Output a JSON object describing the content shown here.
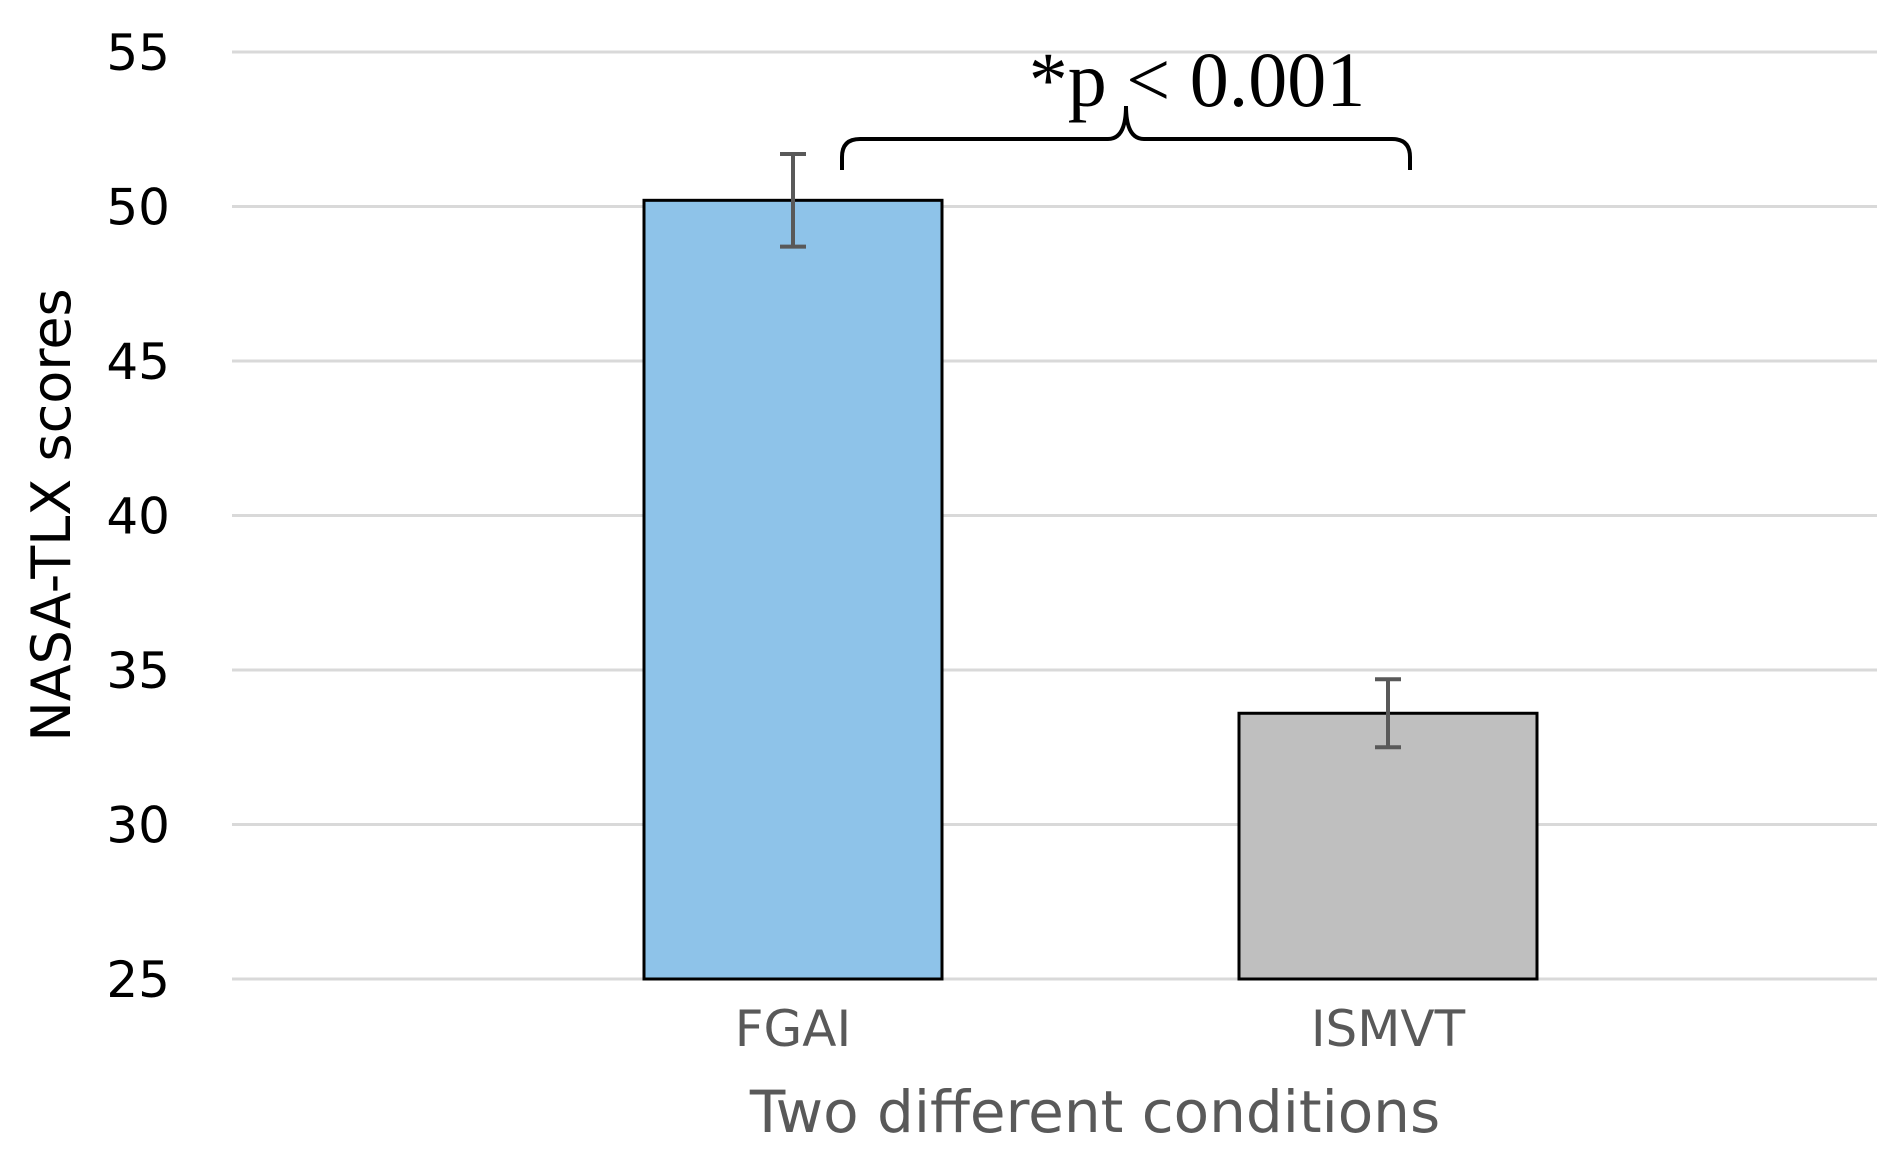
{
  "chart_data": {
    "type": "bar",
    "title": "",
    "xlabel": "Two different conditions",
    "ylabel": "NASA-TLX scores",
    "ylim": [
      25,
      55
    ],
    "yticks": [
      25,
      30,
      35,
      40,
      45,
      50,
      55
    ],
    "grid": true,
    "categories": [
      "FGAI",
      "ISMVT"
    ],
    "values": [
      50.2,
      33.6
    ],
    "errors": [
      1.5,
      1.1
    ],
    "colors": [
      "#8ec3e9",
      "#bfbfbf"
    ],
    "annotation": {
      "text": "*p < 0.001",
      "between": [
        "FGAI",
        "ISMVT"
      ]
    }
  }
}
